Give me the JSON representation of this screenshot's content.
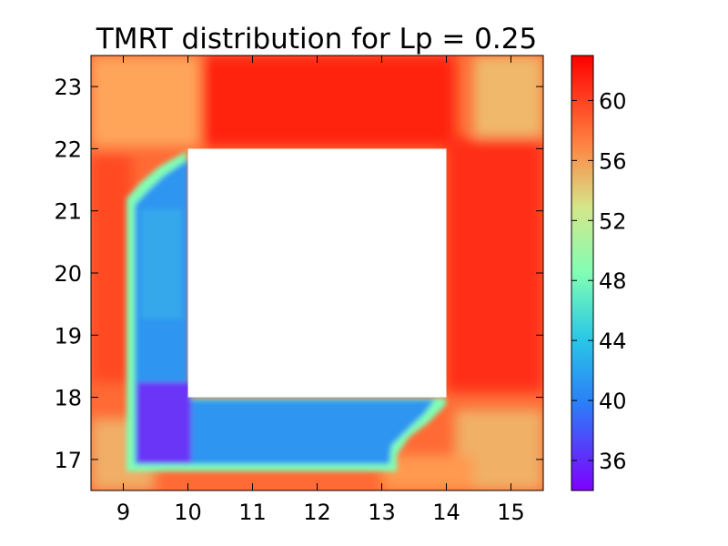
{
  "chart_data": {
    "type": "heatmap",
    "title": "TMRT distribution for Lp = 0.25",
    "xlabel": "",
    "ylabel": "",
    "xlim": [
      8.5,
      15.5
    ],
    "ylim": [
      16.5,
      23.5
    ],
    "x_ticks": [
      9,
      10,
      11,
      12,
      13,
      14,
      15
    ],
    "y_ticks": [
      17,
      18,
      19,
      20,
      21,
      22,
      23
    ],
    "grid": false,
    "colormap": "rainbow",
    "colorbar": {
      "range": [
        34,
        63
      ],
      "ticks": [
        36,
        40,
        44,
        48,
        52,
        56,
        60
      ],
      "colors": [
        "#7f00ff",
        "#2b7ef8",
        "#29c8e6",
        "#81feb4",
        "#d5e68a",
        "#ff8040",
        "#ff0000"
      ]
    },
    "building_footprint": {
      "x_range": [
        10,
        14
      ],
      "y_range": [
        18,
        22
      ],
      "value": null
    },
    "zones": [
      {
        "name": "outer ring",
        "approx_value": 58
      },
      {
        "name": "north and east edges",
        "approx_value": 62
      },
      {
        "name": "corners",
        "approx_value": 55
      },
      {
        "name": "shaded L-band west and south of building",
        "approx_value": 40
      },
      {
        "name": "shaded corner at x 9-10, y 17-18",
        "approx_value": 36
      },
      {
        "name": "shadow edge",
        "approx_value": 48
      }
    ]
  }
}
